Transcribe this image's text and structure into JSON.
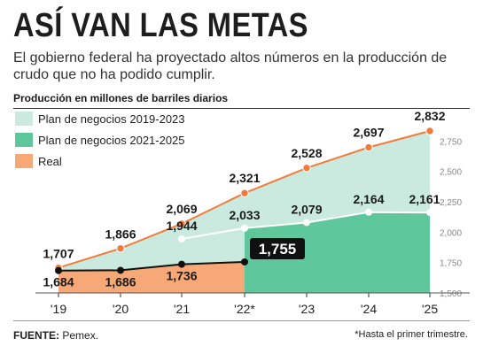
{
  "title": "ASÍ VAN LAS METAS",
  "subtitle": "El gobierno federal ha proyectado altos números en la producción de crudo que no ha podido cumplir.",
  "source_label": "FUENTE:",
  "source_value": "Pemex.",
  "footnote": "*Hasta el primer trimestre.",
  "colors": {
    "plan_2019": "#cbeadf",
    "plan_2021": "#5ec79b",
    "real": "#f7a877",
    "orange_line": "#f07c3c",
    "real_line": "#111111",
    "white_line": "#ffffff"
  },
  "chart_data": {
    "type": "area",
    "ylabel": "Producción en millones de barriles diarios",
    "x": [
      "'19",
      "'20",
      "'21",
      "'22*",
      "'23",
      "'24",
      "'25"
    ],
    "ylim": [
      1500,
      2832
    ],
    "y_ticks": [
      1500,
      1750,
      2000,
      2250,
      2500,
      2750
    ],
    "y_tick_labels": [
      "1,500",
      "1,750",
      "2,000",
      "2,250",
      "2,500",
      "2,750"
    ],
    "legend_position": "top-left",
    "grid": false,
    "series": [
      {
        "name": "Plan de negocios 2019-2023",
        "values": [
          1707,
          1866,
          2069,
          2321,
          2528,
          2697,
          2832
        ],
        "labels": [
          "1,707",
          "1,866",
          "2,069",
          "2,321",
          "2,528",
          "2,697",
          "2,832"
        ]
      },
      {
        "name": "Plan de negocios 2021-2025",
        "values": [
          null,
          null,
          1944,
          2033,
          2079,
          2164,
          2161
        ],
        "labels": [
          "",
          "",
          "1,944",
          "2,033",
          "2,079",
          "2,164",
          "2,161"
        ]
      },
      {
        "name": "Real",
        "values": [
          1684,
          1686,
          1736,
          1755,
          null,
          null,
          null
        ],
        "labels": [
          "1,684",
          "1,686",
          "1,736",
          "1,755",
          "",
          "",
          ""
        ]
      }
    ],
    "highlight": {
      "x": "'22*",
      "label": "1,755"
    }
  }
}
